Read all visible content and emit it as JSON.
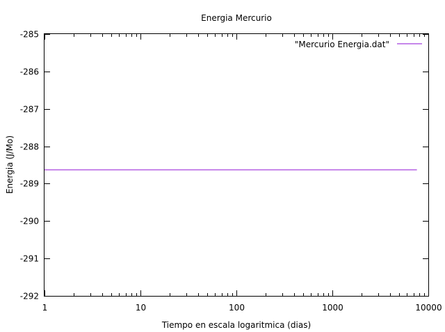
{
  "chart_data": {
    "type": "line",
    "title": "Energia Mercurio",
    "xlabel": "Tiempo en escala logaritmica (dias)",
    "ylabel": "Energia (J/Mo)",
    "x_scale": "log",
    "xlim": [
      1,
      10000
    ],
    "ylim": [
      -292,
      -285
    ],
    "x_ticks": [
      1,
      10,
      100,
      1000,
      10000
    ],
    "x_tick_labels": [
      "1",
      "10",
      "100",
      "1000",
      "10000"
    ],
    "y_ticks": [
      -285,
      -286,
      -287,
      -288,
      -289,
      -290,
      -291,
      -292
    ],
    "y_tick_labels": [
      "-285",
      "-286",
      "-287",
      "-288",
      "-289",
      "-290",
      "-291",
      "-292"
    ],
    "grid": false,
    "legend_position": "top-right",
    "series": [
      {
        "name": "\"Mercurio Energia.dat\"",
        "color": "#b45ee3",
        "x": [
          1,
          10,
          100,
          1000,
          7600
        ],
        "y": [
          -288.63,
          -288.63,
          -288.63,
          -288.63,
          -288.63
        ]
      }
    ]
  }
}
